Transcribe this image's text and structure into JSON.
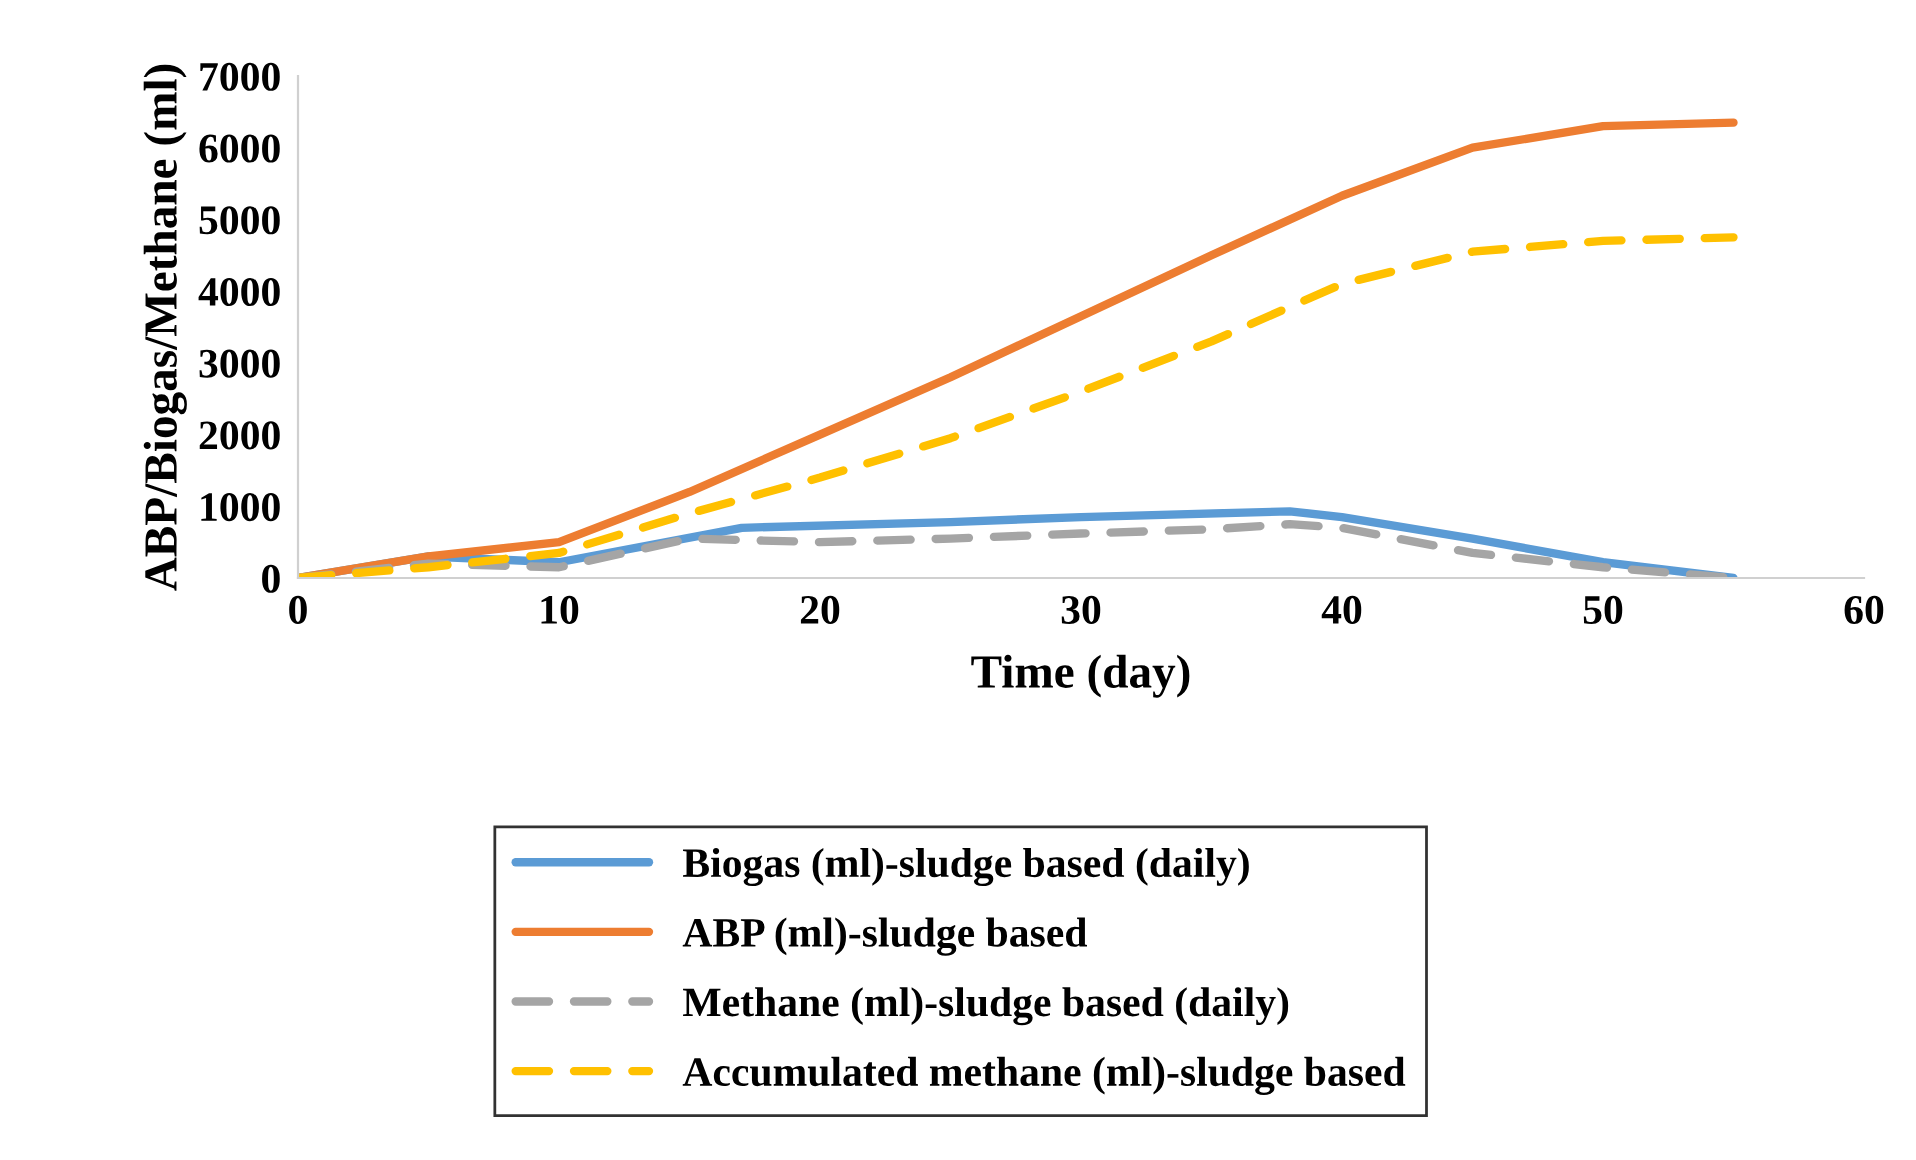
{
  "chart_data": {
    "type": "line",
    "xlabel": "Time (day)",
    "ylabel": "ABP/Biogas/Methane (ml)",
    "xlim": [
      0,
      60
    ],
    "xticks": [
      0,
      10,
      20,
      30,
      40,
      50,
      60
    ],
    "ylim": [
      0,
      7000
    ],
    "yticks": [
      0,
      1000,
      2000,
      3000,
      4000,
      5000,
      6000,
      7000
    ],
    "grid": false,
    "legend": "bottom",
    "marker": "none",
    "series": [
      {
        "name": "Biogas (ml)-sludge based (daily)",
        "color": "#5b9bd5",
        "line_style": "solid",
        "x": [
          0,
          5,
          10,
          17,
          25,
          30,
          38,
          40,
          45,
          50,
          55
        ],
        "values": [
          0,
          300,
          220,
          700,
          780,
          850,
          930,
          850,
          550,
          220,
          0
        ]
      },
      {
        "name": "ABP (ml)-sludge based",
        "color": "#ed7d31",
        "line_style": "solid",
        "x": [
          0,
          5,
          10,
          15,
          20,
          25,
          30,
          35,
          40,
          45,
          50,
          55
        ],
        "values": [
          0,
          300,
          500,
          1200,
          2000,
          2800,
          3650,
          4500,
          5330,
          6000,
          6300,
          6350
        ]
      },
      {
        "name": "Methane (ml)-sludge based (daily)",
        "color": "#a5a5a5",
        "line_style": "dashed",
        "x": [
          0,
          5,
          10,
          15,
          20,
          25,
          30,
          35,
          38,
          40,
          45,
          50,
          55
        ],
        "values": [
          0,
          200,
          150,
          550,
          500,
          550,
          620,
          680,
          750,
          700,
          350,
          150,
          0
        ]
      },
      {
        "name": "Accumulated methane (ml)-sludge based",
        "color": "#ffc000",
        "line_style": "dashed",
        "x": [
          0,
          5,
          10,
          15,
          20,
          25,
          30,
          35,
          40,
          45,
          50,
          55
        ],
        "values": [
          0,
          150,
          350,
          900,
          1400,
          1950,
          2600,
          3300,
          4100,
          4550,
          4700,
          4750
        ]
      }
    ]
  }
}
